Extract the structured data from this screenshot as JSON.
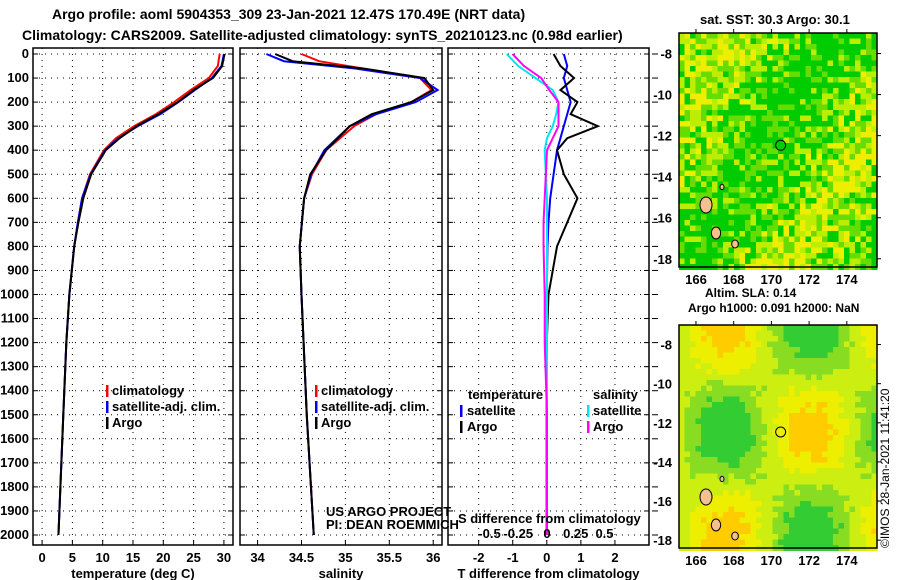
{
  "title_line1": "Argo profile: aoml 5904353_309 23-Jan-2021 12.47S 170.49E (NRT data)",
  "title_line2": "Climatology: CARS2009. Satellite-adjusted climatology: synTS_20210123.nc (0.98d earlier)",
  "colors": {
    "climatology": "#ff0000",
    "satellite": "#0000ff",
    "argo": "#000000",
    "sal_sat": "#00e5ee",
    "sal_argo": "#ff00ff"
  },
  "chart_data": [
    {
      "type": "line",
      "xlabel": "temperature (deg C)",
      "xlim": [
        -1.5,
        31.5
      ],
      "xticks": [
        "0",
        "5",
        "10",
        "15",
        "20",
        "25",
        "30"
      ],
      "xtickvals": [
        0,
        5,
        10,
        15,
        20,
        25,
        30
      ],
      "ylim": [
        2050,
        0
      ],
      "yticks": [
        "0",
        "100",
        "200",
        "300",
        "400",
        "500",
        "600",
        "700",
        "800",
        "900",
        "1000",
        "1100",
        "1200",
        "1300",
        "1400",
        "1500",
        "1600",
        "1700",
        "1800",
        "1900",
        "2000"
      ],
      "legend": [
        "climatology",
        "satellite-adj. clim.",
        "Argo"
      ],
      "depth": [
        0,
        50,
        100,
        150,
        200,
        250,
        300,
        350,
        400,
        500,
        600,
        700,
        800,
        1000,
        1200,
        1500,
        2000
      ],
      "series": [
        {
          "name": "climatology",
          "values": [
            29.3,
            29.0,
            27.5,
            24.5,
            21.8,
            18.8,
            15.2,
            12.2,
            10.2,
            7.9,
            6.6,
            5.9,
            5.3,
            4.5,
            4.0,
            3.5,
            2.7
          ]
        },
        {
          "name": "satellite-adj. clim.",
          "values": [
            30.0,
            29.6,
            28.0,
            25.2,
            22.5,
            19.5,
            15.8,
            12.6,
            10.4,
            8.0,
            6.6,
            5.9,
            5.3,
            4.5,
            4.0,
            3.5,
            2.7
          ]
        },
        {
          "name": "Argo",
          "values": [
            30.1,
            29.7,
            28.2,
            25.0,
            22.4,
            19.2,
            15.6,
            12.8,
            10.5,
            8.1,
            6.8,
            6.0,
            5.3,
            4.5,
            4.0,
            3.5,
            2.7
          ]
        }
      ]
    },
    {
      "type": "line",
      "xlabel": "salinity",
      "xlim": [
        33.8,
        36.1
      ],
      "xticks": [
        "34",
        "34.5",
        "35",
        "35.5",
        "36"
      ],
      "xtickvals": [
        34,
        34.5,
        35,
        35.5,
        36
      ],
      "legend": [
        "climatology",
        "satellite-adj. clim.",
        "Argo"
      ],
      "annotation": [
        "US ARGO PROJECT",
        "PI: DEAN ROEMMICH"
      ],
      "depth": [
        0,
        30,
        60,
        100,
        150,
        200,
        250,
        300,
        400,
        500,
        600,
        800,
        1000,
        1500,
        2000
      ],
      "series": [
        {
          "name": "climatology",
          "values": [
            34.5,
            34.7,
            35.2,
            35.85,
            35.98,
            35.75,
            35.35,
            35.1,
            34.78,
            34.62,
            34.53,
            34.48,
            34.5,
            34.56,
            34.64
          ]
        },
        {
          "name": "satellite-adj. clim.",
          "values": [
            34.1,
            34.3,
            35.1,
            35.85,
            36.05,
            35.8,
            35.35,
            35.05,
            34.76,
            34.61,
            34.53,
            34.48,
            34.5,
            34.56,
            34.64
          ]
        },
        {
          "name": "Argo",
          "values": [
            34.2,
            34.4,
            35.2,
            35.9,
            36.0,
            35.75,
            35.3,
            35.05,
            34.78,
            34.6,
            34.53,
            34.48,
            34.5,
            34.56,
            34.64
          ]
        }
      ]
    },
    {
      "type": "line",
      "xlabel": "T difference from climatology",
      "xlabel2": "S difference from climatology",
      "xlim": [
        -2.9,
        3.0
      ],
      "xticks": [
        "-2",
        "-1",
        "0",
        "1",
        "2"
      ],
      "xtickvals": [
        -2,
        -1,
        0,
        1,
        2
      ],
      "sticks": [
        "-0.5",
        "-0.25",
        "0",
        "0.25",
        "0.5"
      ],
      "stickvals": [
        -0.5,
        -0.25,
        0,
        0.25,
        0.5
      ],
      "legend_left_title": "temperature",
      "legend_right_title": "salinity",
      "legend_left": [
        "satellite",
        "Argo"
      ],
      "legend_right": [
        "satellite",
        "Argo"
      ],
      "depth": [
        0,
        50,
        100,
        150,
        200,
        250,
        300,
        350,
        400,
        500,
        600,
        700,
        800,
        1000,
        1200,
        1500,
        2000
      ],
      "series": [
        {
          "name": "T satellite",
          "values": [
            0.5,
            0.6,
            0.5,
            0.6,
            0.7,
            0.6,
            0.5,
            0.4,
            0.3,
            0.2,
            0.1,
            0.05,
            0.02,
            0,
            0,
            0,
            0
          ]
        },
        {
          "name": "T Argo",
          "values": [
            0.2,
            0.4,
            0.8,
            0.4,
            0.9,
            0.7,
            1.5,
            0.6,
            0.3,
            0.5,
            0.9,
            0.6,
            0.3,
            0.05,
            0,
            0,
            0
          ]
        },
        {
          "name": "S satellite",
          "values": [
            -0.35,
            -0.25,
            -0.1,
            0.05,
            0.1,
            0.08,
            0.05,
            0,
            -0.02,
            -0.01,
            0,
            0,
            0,
            0,
            0,
            0,
            0
          ]
        },
        {
          "name": "S Argo",
          "values": [
            -0.3,
            -0.2,
            -0.05,
            0.02,
            0.1,
            0.1,
            0.1,
            0.05,
            0,
            -0.01,
            -0.02,
            -0.03,
            -0.03,
            -0.02,
            -0.02,
            0,
            0
          ]
        }
      ]
    }
  ],
  "map1": {
    "title": "sat. SST: 30.3 Argo: 30.1",
    "yticks": [
      "-8",
      "-10",
      "-12",
      "-14",
      "-16",
      "-18"
    ],
    "xticks": [
      "166",
      "168",
      "170",
      "172",
      "174"
    ]
  },
  "map2": {
    "title1": "Altim. SLA: 0.14",
    "title2": "Argo h1000: 0.091 h2000: NaN",
    "yticks": [
      "-8",
      "-10",
      "-12",
      "-14",
      "-16",
      "-18"
    ],
    "xticks": [
      "166",
      "168",
      "170",
      "172",
      "174"
    ]
  },
  "credit": "©IMOS 28-Jan-2021 11:41:20"
}
